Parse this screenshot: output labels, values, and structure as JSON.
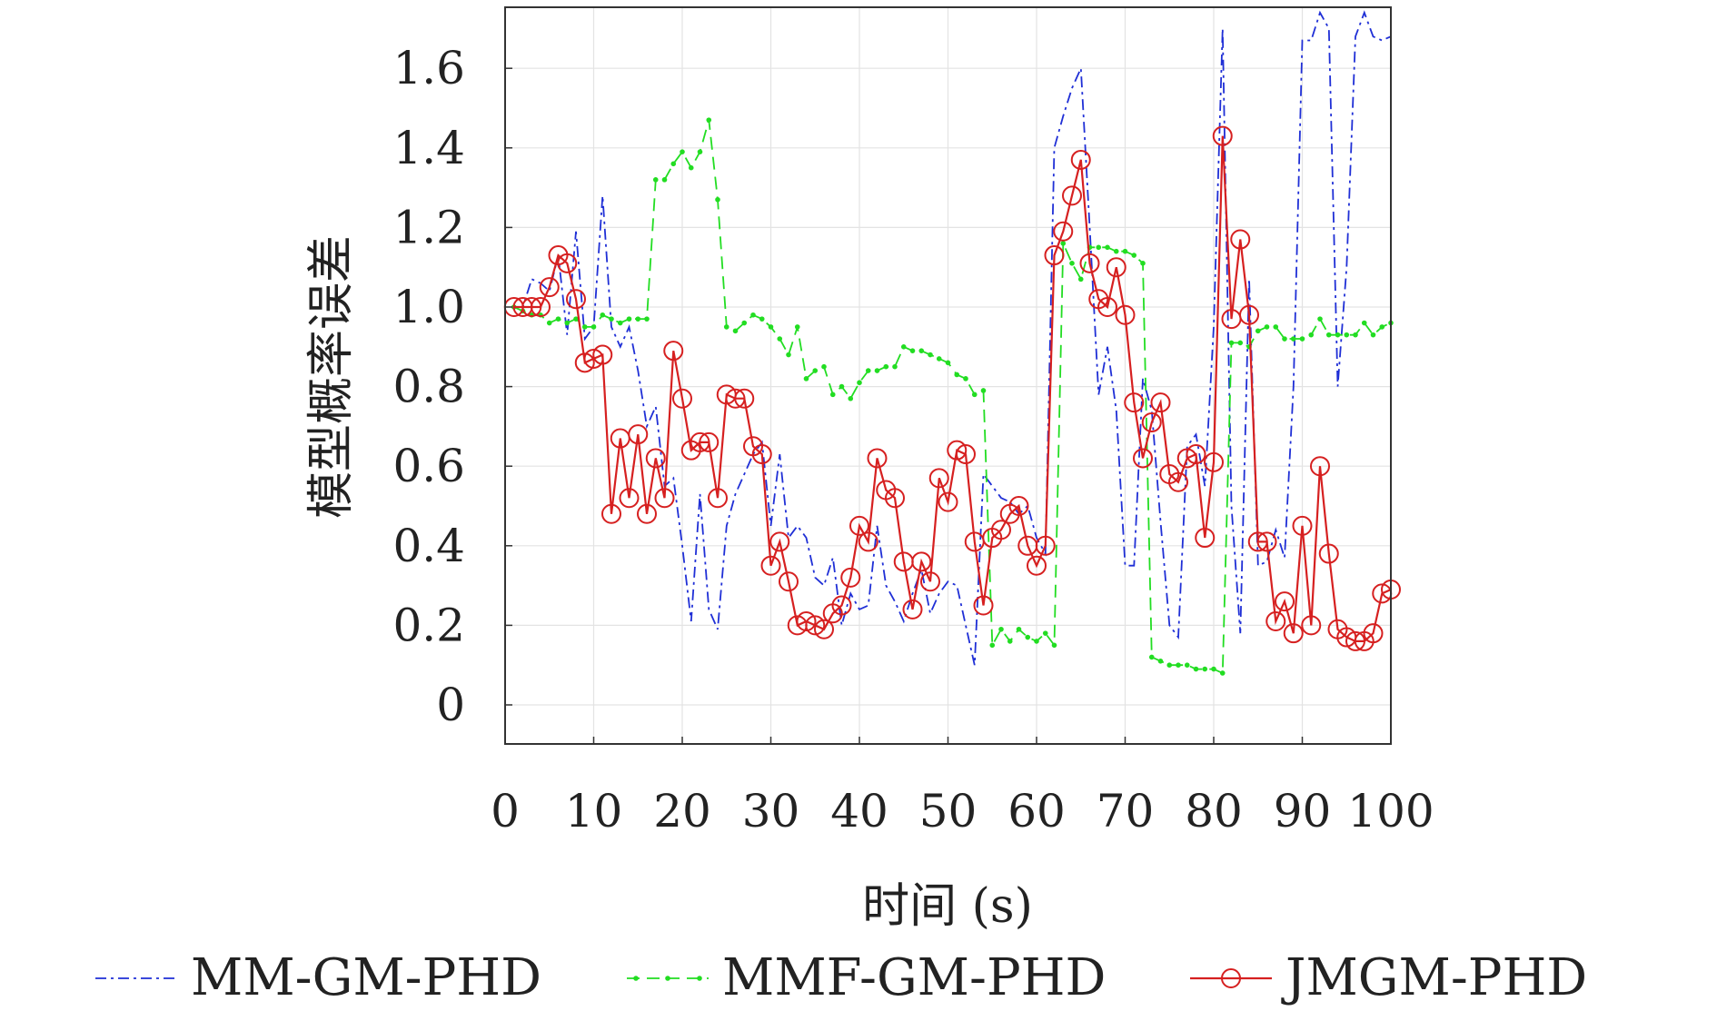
{
  "chart_data": {
    "type": "line",
    "xlabel": "时间 (s)",
    "ylabel": "模型概率误差",
    "xlim": [
      0,
      100
    ],
    "ylim": [
      -0.1,
      1.75
    ],
    "xticks": [
      "0",
      "10",
      "20",
      "30",
      "40",
      "50",
      "60",
      "70",
      "80",
      "90",
      "100"
    ],
    "yticks": [
      "0",
      "0.2",
      "0.4",
      "0.6",
      "0.8",
      "1.0",
      "1.2",
      "1.4",
      "1.6"
    ],
    "grid": true,
    "legend": "bottom",
    "x": [
      1,
      2,
      3,
      4,
      5,
      6,
      7,
      8,
      9,
      10,
      11,
      12,
      13,
      14,
      15,
      16,
      17,
      18,
      19,
      20,
      21,
      22,
      23,
      24,
      25,
      26,
      27,
      28,
      29,
      30,
      31,
      32,
      33,
      34,
      35,
      36,
      37,
      38,
      39,
      40,
      41,
      42,
      43,
      44,
      45,
      46,
      47,
      48,
      49,
      50,
      51,
      52,
      53,
      54,
      55,
      56,
      57,
      58,
      59,
      60,
      61,
      62,
      63,
      64,
      65,
      66,
      67,
      68,
      69,
      70,
      71,
      72,
      73,
      74,
      75,
      76,
      77,
      78,
      79,
      80,
      81,
      82,
      83,
      84,
      85,
      86,
      87,
      88,
      89,
      90,
      91,
      92,
      93,
      94,
      95,
      96,
      97,
      98,
      99,
      100
    ],
    "series": [
      {
        "name": "MM-GM-PHD",
        "color": "#1f2fd6",
        "style": "dashdot",
        "marker": "none",
        "values": [
          1.0,
          1.0,
          1.07,
          1.06,
          1.04,
          1.13,
          0.93,
          1.19,
          0.92,
          0.95,
          1.28,
          0.95,
          0.9,
          0.95,
          0.84,
          0.7,
          0.75,
          0.55,
          0.57,
          0.4,
          0.21,
          0.53,
          0.24,
          0.19,
          0.45,
          0.53,
          0.58,
          0.63,
          0.66,
          0.45,
          0.63,
          0.42,
          0.45,
          0.42,
          0.32,
          0.3,
          0.37,
          0.2,
          0.28,
          0.24,
          0.25,
          0.45,
          0.3,
          0.26,
          0.21,
          0.28,
          0.34,
          0.23,
          0.28,
          0.31,
          0.3,
          0.2,
          0.1,
          0.58,
          0.55,
          0.52,
          0.51,
          0.48,
          0.5,
          0.42,
          0.38,
          1.4,
          1.48,
          1.55,
          1.6,
          1.2,
          0.78,
          0.9,
          0.74,
          0.35,
          0.35,
          0.82,
          0.74,
          0.46,
          0.2,
          0.17,
          0.65,
          0.68,
          0.55,
          0.95,
          1.7,
          0.5,
          0.18,
          1.07,
          0.35,
          0.36,
          0.44,
          0.37,
          0.8,
          1.67,
          1.67,
          1.74,
          1.7,
          0.8,
          1.1,
          1.68,
          1.74,
          1.68,
          1.67,
          1.68
        ]
      },
      {
        "name": "MMF-GM-PHD",
        "color": "#22dd22",
        "style": "dashed",
        "marker": "dot",
        "values": [
          1.0,
          0.99,
          0.98,
          0.98,
          0.96,
          0.97,
          0.96,
          0.97,
          0.95,
          0.95,
          0.98,
          0.97,
          0.96,
          0.97,
          0.97,
          0.97,
          1.32,
          1.32,
          1.36,
          1.39,
          1.35,
          1.39,
          1.47,
          1.27,
          0.95,
          0.94,
          0.96,
          0.98,
          0.97,
          0.95,
          0.92,
          0.88,
          0.95,
          0.82,
          0.84,
          0.85,
          0.78,
          0.8,
          0.77,
          0.81,
          0.84,
          0.84,
          0.85,
          0.85,
          0.9,
          0.89,
          0.89,
          0.88,
          0.87,
          0.86,
          0.83,
          0.82,
          0.78,
          0.79,
          0.15,
          0.19,
          0.16,
          0.19,
          0.17,
          0.16,
          0.18,
          0.15,
          1.16,
          1.11,
          1.07,
          1.15,
          1.15,
          1.15,
          1.14,
          1.14,
          1.13,
          1.11,
          0.12,
          0.11,
          0.1,
          0.1,
          0.1,
          0.09,
          0.09,
          0.09,
          0.08,
          0.91,
          0.91,
          0.9,
          0.94,
          0.95,
          0.95,
          0.92,
          0.92,
          0.92,
          0.93,
          0.97,
          0.93,
          0.93,
          0.93,
          0.93,
          0.96,
          0.93,
          0.95,
          0.96
        ]
      },
      {
        "name": "JMGM-PHD",
        "color": "#d62020",
        "style": "solid",
        "marker": "circle",
        "values": [
          1.0,
          1.0,
          1.0,
          1.0,
          1.05,
          1.13,
          1.11,
          1.02,
          0.86,
          0.87,
          0.88,
          0.48,
          0.67,
          0.52,
          0.68,
          0.48,
          0.62,
          0.52,
          0.89,
          0.77,
          0.64,
          0.66,
          0.66,
          0.52,
          0.78,
          0.77,
          0.77,
          0.65,
          0.63,
          0.35,
          0.41,
          0.31,
          0.2,
          0.21,
          0.2,
          0.19,
          0.23,
          0.25,
          0.32,
          0.45,
          0.41,
          0.62,
          0.54,
          0.52,
          0.36,
          0.24,
          0.36,
          0.31,
          0.57,
          0.51,
          0.64,
          0.63,
          0.41,
          0.25,
          0.42,
          0.44,
          0.48,
          0.5,
          0.4,
          0.35,
          0.4,
          1.13,
          1.19,
          1.28,
          1.37,
          1.11,
          1.02,
          1.0,
          1.1,
          0.98,
          0.76,
          0.62,
          0.71,
          0.76,
          0.58,
          0.56,
          0.62,
          0.63,
          0.42,
          0.61,
          1.43,
          0.97,
          1.17,
          0.98,
          0.41,
          0.41,
          0.21,
          0.26,
          0.18,
          0.45,
          0.2,
          0.6,
          0.38,
          0.19,
          0.17,
          0.16,
          0.16,
          0.18,
          0.28,
          0.29
        ]
      }
    ]
  }
}
